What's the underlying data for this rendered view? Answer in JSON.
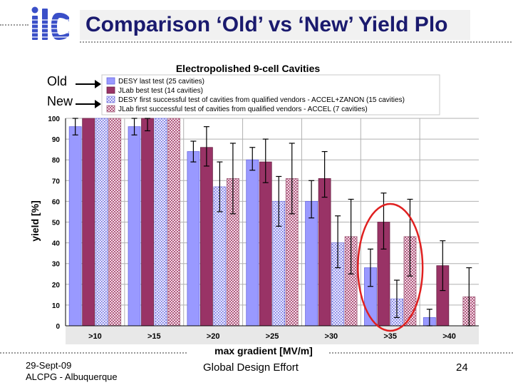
{
  "slide": {
    "title": "Comparison ‘Old’ vs ‘New’ Yield Plo",
    "old_label": "Old",
    "new_label": "New",
    "footer_date": "29-Sept-09",
    "footer_location": "ALCPG - Albuquerque",
    "footer_center": "Global Design Effort",
    "page_number": "24"
  },
  "colors": {
    "desy_last": "#9999ff",
    "jlab_best": "#993366",
    "desy_first": "#b0b0f0",
    "jlab_first": "#cc99aa",
    "highlight": "#e02020",
    "title": "#1a1a6e",
    "logo": "#3a4fc8"
  },
  "chart_data": {
    "type": "bar",
    "title": "Electropolished 9-cell Cavities",
    "xlabel": "max gradient [MV/m]",
    "ylabel": "yield [%]",
    "ylim": [
      0,
      100
    ],
    "yticks": [
      0,
      10,
      20,
      30,
      40,
      50,
      60,
      70,
      80,
      90,
      100
    ],
    "grid": true,
    "legend_position": "top",
    "categories": [
      ">10",
      ">15",
      ">20",
      ">25",
      ">30",
      ">35",
      ">40"
    ],
    "highlighted_category": ">35",
    "series": [
      {
        "name": "DESY last test (25 cavities)",
        "pattern": "solid",
        "values": [
          96,
          96,
          84,
          80,
          60,
          28,
          4
        ],
        "err": [
          [
            4,
            4
          ],
          [
            4,
            4
          ],
          [
            5,
            5
          ],
          [
            5,
            6
          ],
          [
            8,
            10
          ],
          [
            9,
            9
          ],
          [
            4,
            4
          ]
        ]
      },
      {
        "name": "JLab best test (14 cavities)",
        "pattern": "solid",
        "values": [
          100,
          100,
          86,
          79,
          71,
          50,
          29
        ],
        "err": [
          [
            0,
            0
          ],
          [
            6,
            9
          ],
          [
            9,
            10
          ],
          [
            10,
            11
          ],
          [
            9,
            13
          ],
          [
            13,
            14
          ],
          [
            12,
            12
          ]
        ]
      },
      {
        "name": "DESY first successful test of cavities from qualified vendors - ACCEL+ZANON (15 cavities)",
        "pattern": "dotted",
        "values": [
          100,
          100,
          67,
          60,
          40,
          13,
          0
        ],
        "err": [
          [
            0,
            0
          ],
          [
            0,
            0
          ],
          [
            12,
            12
          ],
          [
            12,
            12
          ],
          [
            12,
            13
          ],
          [
            9,
            9
          ],
          [
            0,
            0
          ]
        ]
      },
      {
        "name": "JLab first successful test of cavities from qualified vendors - ACCEL (7 cavities)",
        "pattern": "hatched",
        "values": [
          100,
          100,
          71,
          71,
          43,
          43,
          14
        ],
        "err": [
          [
            0,
            0
          ],
          [
            0,
            0
          ],
          [
            17,
            17
          ],
          [
            17,
            17
          ],
          [
            18,
            18
          ],
          [
            19,
            18
          ],
          [
            14,
            14
          ]
        ]
      }
    ]
  }
}
